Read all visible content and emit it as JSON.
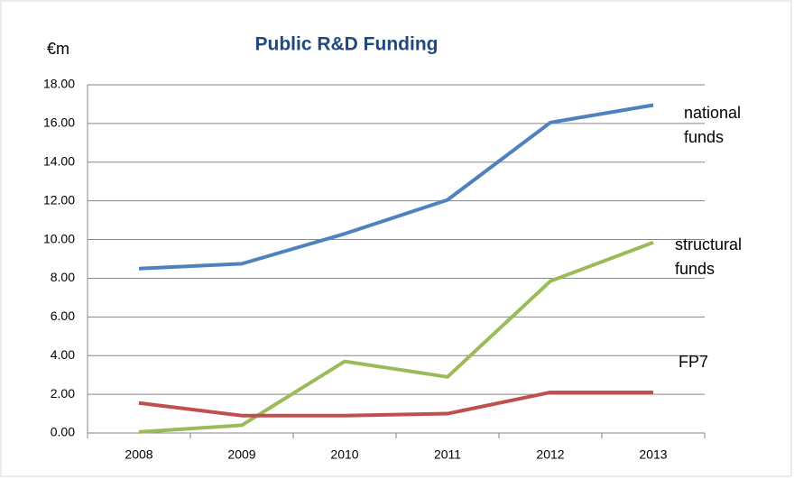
{
  "chart_data": {
    "type": "line",
    "title": "Public R&D Funding",
    "y_label": "€m",
    "categories": [
      "2008",
      "2009",
      "2010",
      "2011",
      "2012",
      "2013"
    ],
    "series": [
      {
        "name": "national funds",
        "color": "#4f81bd",
        "values": [
          8.5,
          8.75,
          10.3,
          12.05,
          16.05,
          16.95
        ]
      },
      {
        "name": "structural funds",
        "color": "#9bbb59",
        "values": [
          0.05,
          0.4,
          3.7,
          2.9,
          7.85,
          9.85
        ]
      },
      {
        "name": "FP7",
        "color": "#c0504d",
        "values": [
          1.55,
          0.9,
          0.9,
          1.0,
          2.1,
          2.1
        ]
      }
    ],
    "ylim": [
      0,
      18
    ],
    "yticks": [
      {
        "value": 0,
        "label": "0.00"
      },
      {
        "value": 2,
        "label": "2.00"
      },
      {
        "value": 4,
        "label": "4.00"
      },
      {
        "value": 6,
        "label": "6.00"
      },
      {
        "value": 8,
        "label": "8.00"
      },
      {
        "value": 10,
        "label": "10.00"
      },
      {
        "value": 12,
        "label": "12.00"
      },
      {
        "value": 14,
        "label": "14.00"
      },
      {
        "value": 16,
        "label": "16.00"
      },
      {
        "value": 18,
        "label": "18.00"
      }
    ],
    "grid": true
  }
}
